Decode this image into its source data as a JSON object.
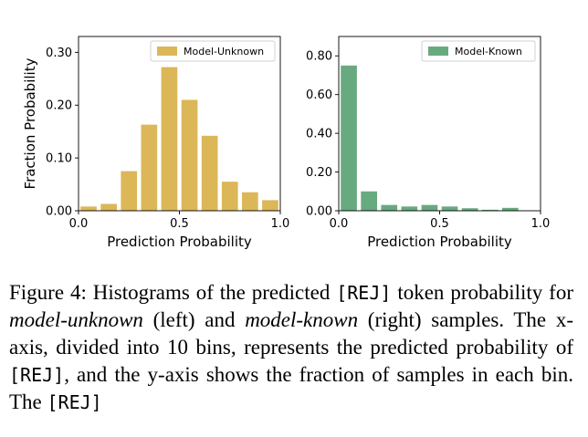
{
  "chart_data": [
    {
      "type": "bar",
      "title": "",
      "xlabel": "Prediction Probability",
      "ylabel": "Fraction Probability",
      "xlim": [
        0,
        1
      ],
      "ylim": [
        0,
        0.33
      ],
      "xticks": [
        "0.0",
        "0.5",
        "1.0"
      ],
      "yticks": [
        "0.00",
        "0.10",
        "0.20",
        "0.30"
      ],
      "ytick_values": [
        0,
        0.1,
        0.2,
        0.3
      ],
      "xtick_values": [
        0,
        0.5,
        1.0
      ],
      "legend_position": "top-right",
      "color": "#dbb757",
      "series": [
        {
          "name": "Model-Unknown",
          "bin_centers": [
            0.05,
            0.15,
            0.25,
            0.35,
            0.45,
            0.55,
            0.65,
            0.75,
            0.85,
            0.95
          ],
          "values": [
            0.008,
            0.013,
            0.075,
            0.163,
            0.272,
            0.21,
            0.142,
            0.055,
            0.035,
            0.02
          ]
        }
      ]
    },
    {
      "type": "bar",
      "title": "",
      "xlabel": "Prediction Probability",
      "ylabel": "",
      "xlim": [
        0,
        1
      ],
      "ylim": [
        0,
        0.9
      ],
      "xticks": [
        "0.0",
        "0.5",
        "1.0"
      ],
      "yticks": [
        "0.00",
        "0.20",
        "0.40",
        "0.60",
        "0.80"
      ],
      "ytick_values": [
        0,
        0.2,
        0.4,
        0.6,
        0.8
      ],
      "xtick_values": [
        0,
        0.5,
        1.0
      ],
      "legend_position": "top-right",
      "color": "#68aa7f",
      "series": [
        {
          "name": "Model-Known",
          "bin_centers": [
            0.05,
            0.15,
            0.25,
            0.35,
            0.45,
            0.55,
            0.65,
            0.75,
            0.85,
            0.95
          ],
          "values": [
            0.75,
            0.1,
            0.03,
            0.022,
            0.03,
            0.022,
            0.013,
            0.005,
            0.015,
            0.0
          ]
        }
      ]
    }
  ],
  "caption": {
    "label": "Figure 4:",
    "t1": " Histograms of the predicted ",
    "token1": "[REJ]",
    "t2": " token probability for ",
    "unknown": "model-unknown",
    "t3": " (left) and ",
    "known": "model-known",
    "t4": " (right) samples. The x-axis, divided into 10 bins, represents the predicted probability of ",
    "token2": "[REJ]",
    "t5": ", and the y-axis shows the fraction of samples in each bin. The ",
    "token3": "[REJ]"
  }
}
